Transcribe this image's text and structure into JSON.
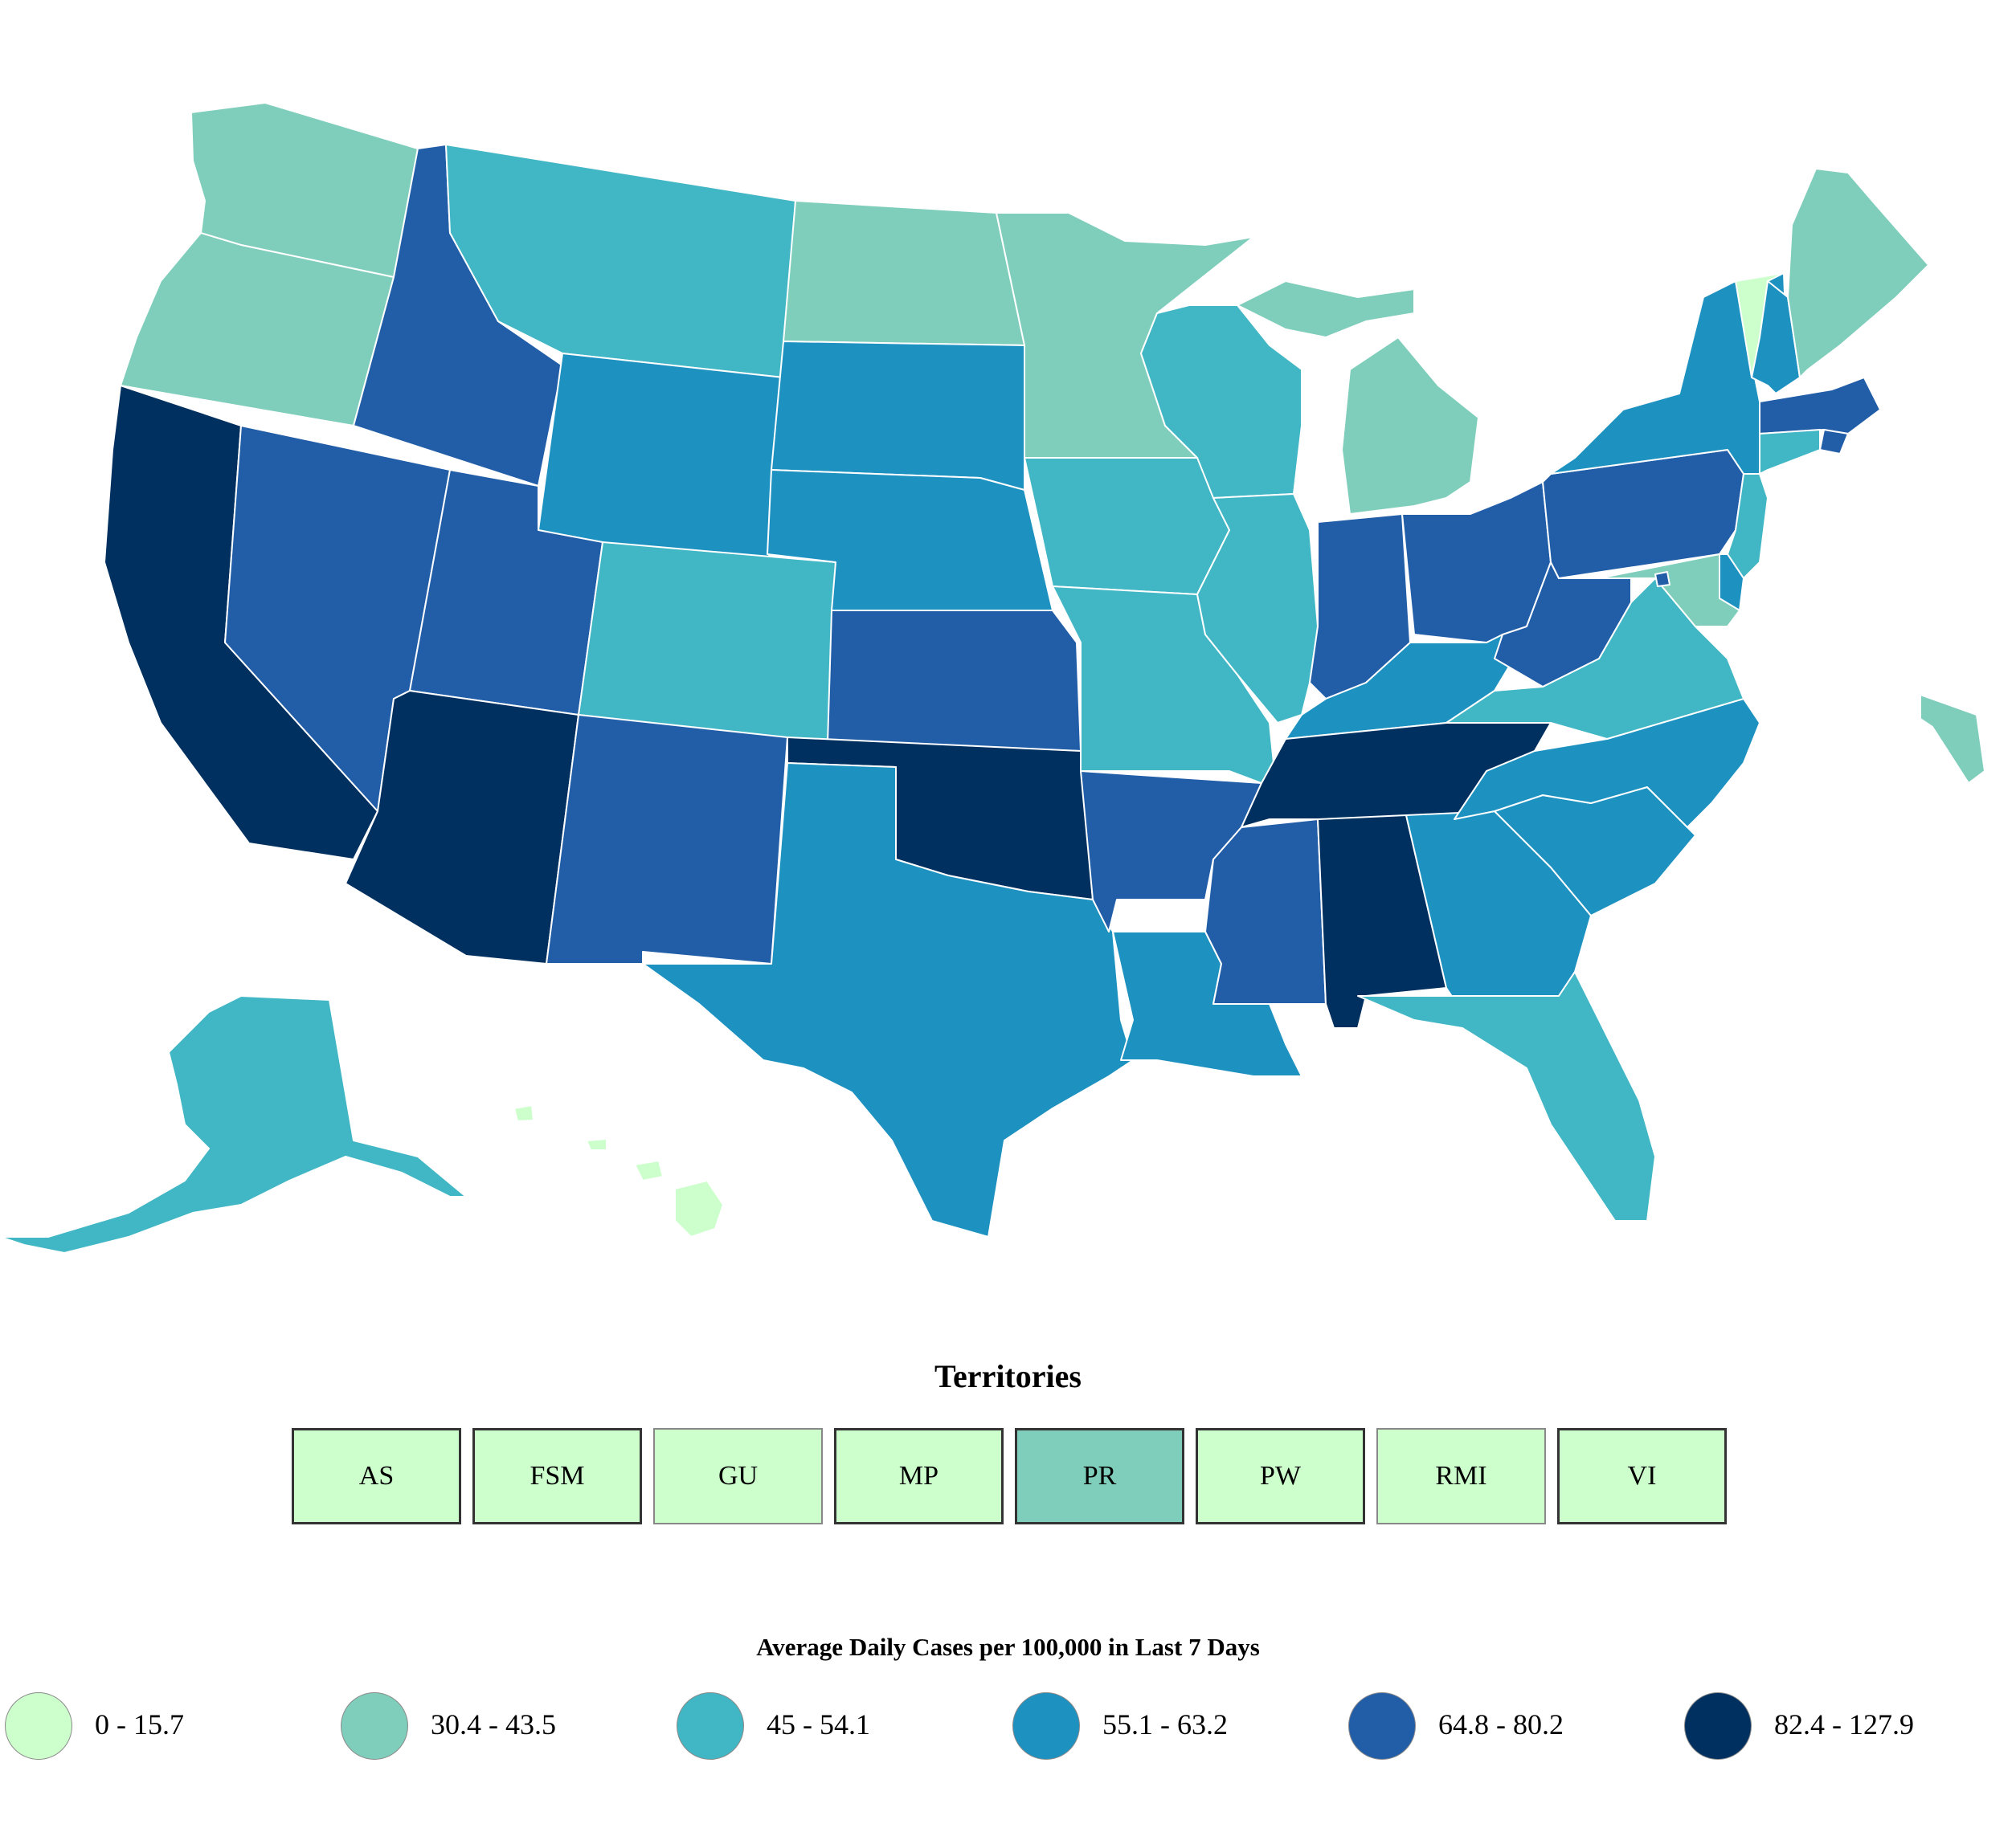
{
  "colors": {
    "bin1": "#ccffcc",
    "bin2": "#7fcdbb",
    "bin3": "#41b6c4",
    "bin4": "#1d91c0",
    "bin5": "#225ea8",
    "bin6": "#00305f"
  },
  "map": {
    "state_bins": {
      "WA": "bin2",
      "OR": "bin2",
      "CA": "bin6",
      "NV": "bin5",
      "ID": "bin5",
      "MT": "bin3",
      "WY": "bin4",
      "UT": "bin5",
      "AZ": "bin6",
      "CO": "bin3",
      "NM": "bin5",
      "ND": "bin2",
      "SD": "bin4",
      "NE": "bin4",
      "KS": "bin5",
      "OK": "bin6",
      "TX": "bin4",
      "MN": "bin2",
      "IA": "bin3",
      "MO": "bin3",
      "AR": "bin5",
      "LA": "bin4",
      "WI": "bin3",
      "IL": "bin3",
      "MI": "bin2",
      "IN": "bin5",
      "OH": "bin5",
      "KY": "bin4",
      "TN": "bin6",
      "MS": "bin5",
      "AL": "bin6",
      "GA": "bin4",
      "FL": "bin3",
      "SC": "bin4",
      "NC": "bin4",
      "VA": "bin3",
      "WV": "bin5",
      "PA": "bin5",
      "NY": "bin4",
      "VT": "bin1",
      "NH": "bin4",
      "ME": "bin2",
      "MA": "bin5",
      "RI": "bin5",
      "CT": "bin3",
      "NJ": "bin3",
      "DE": "bin4",
      "MD": "bin2",
      "DC": "bin5",
      "AK": "bin3",
      "HI": "bin1"
    }
  },
  "territories": {
    "title": "Territories",
    "items": [
      {
        "label": "AS",
        "bin": "bin1",
        "border": "thick"
      },
      {
        "label": "FSM",
        "bin": "bin1",
        "border": "thick"
      },
      {
        "label": "GU",
        "bin": "bin1",
        "border": "thin"
      },
      {
        "label": "MP",
        "bin": "bin1",
        "border": "thick"
      },
      {
        "label": "PR",
        "bin": "bin2",
        "border": "thick"
      },
      {
        "label": "PW",
        "bin": "bin1",
        "border": "thick"
      },
      {
        "label": "RMI",
        "bin": "bin1",
        "border": "thin"
      },
      {
        "label": "VI",
        "bin": "bin1",
        "border": "thick"
      }
    ]
  },
  "legend": {
    "title": "Average Daily Cases per 100,000 in Last 7 Days",
    "items": [
      {
        "label": "0 - 15.7",
        "bin": "bin1"
      },
      {
        "label": "30.4 - 43.5",
        "bin": "bin2"
      },
      {
        "label": "45 - 54.1",
        "bin": "bin3"
      },
      {
        "label": "55.1 - 63.2",
        "bin": "bin4"
      },
      {
        "label": "64.8 - 80.2",
        "bin": "bin5"
      },
      {
        "label": "82.4 - 127.9",
        "bin": "bin6"
      }
    ]
  }
}
